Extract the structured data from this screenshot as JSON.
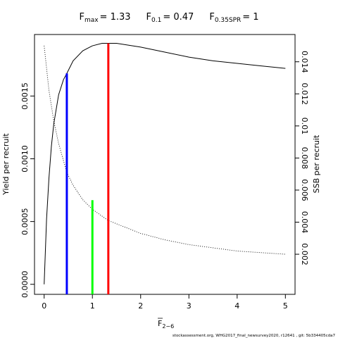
{
  "chart_data": {
    "type": "line",
    "title": {
      "fmax": {
        "main": "F",
        "sub": "max",
        "value": "= 1.33"
      },
      "f01": {
        "main": "F",
        "sub": "0.1",
        "value": "= 0.47"
      },
      "fspr": {
        "main": "F",
        "sub": "0.35SPR",
        "value": "= 1"
      }
    },
    "xlabel": {
      "main": "F",
      "sub": "2−6"
    },
    "ylabel_left": "Yield per recruit",
    "ylabel_right": "SSB per recruit",
    "xlim": [
      -0.2,
      5.2
    ],
    "ylim_left": [
      -8e-05,
      0.00199
    ],
    "ylim_right": [
      -0.0005,
      0.0157
    ],
    "x_ticks": [
      "0",
      "1",
      "2",
      "3",
      "4",
      "5"
    ],
    "y_left_ticks": [
      "0.0000",
      "0.0005",
      "0.0010",
      "0.0015"
    ],
    "y_right_ticks": [
      "0.002",
      "0.004",
      "0.006",
      "0.008",
      "0.01",
      "0.012",
      "0.014"
    ],
    "series": [
      {
        "axis": "left",
        "style": "solid",
        "x": [
          0,
          0.05,
          0.1,
          0.15,
          0.2,
          0.3,
          0.4,
          0.47,
          0.6,
          0.8,
          1.0,
          1.2,
          1.33,
          1.5,
          2.0,
          2.5,
          3.0,
          3.5,
          4.0,
          4.5,
          5.0
        ],
        "y": [
          0.0,
          0.00052,
          0.00085,
          0.0011,
          0.00128,
          0.00151,
          0.00163,
          0.00168,
          0.00178,
          0.00186,
          0.0019,
          0.00192,
          0.00192,
          0.00192,
          0.00189,
          0.00185,
          0.00181,
          0.00178,
          0.00176,
          0.00174,
          0.00172
        ]
      },
      {
        "axis": "right",
        "style": "dotted",
        "x": [
          0,
          0.1,
          0.2,
          0.3,
          0.47,
          0.6,
          0.8,
          1.0,
          1.33,
          1.5,
          2.0,
          2.5,
          3.0,
          3.5,
          4.0,
          4.5,
          5.0
        ],
        "y": [
          0.015,
          0.0122,
          0.0103,
          0.0089,
          0.0071,
          0.0063,
          0.0054,
          0.0048,
          0.0041,
          0.0039,
          0.0033,
          0.0029,
          0.0026,
          0.0024,
          0.0022,
          0.0021,
          0.002
        ]
      }
    ],
    "reference_lines": [
      {
        "label": "F0.1",
        "x": 0.47,
        "y_top": 0.00168,
        "color": "#0000ff"
      },
      {
        "label": "F0.35SPR",
        "x": 1.0,
        "y_top": 0.00067,
        "color": "#00ff00"
      },
      {
        "label": "Fmax",
        "x": 1.33,
        "y_top": 0.00192,
        "color": "#ff0000"
      }
    ],
    "footer": "stockassessment.org,  WHG2017_final_newsurvey2020,  r12641  ,  git:  5b334405cda7"
  }
}
